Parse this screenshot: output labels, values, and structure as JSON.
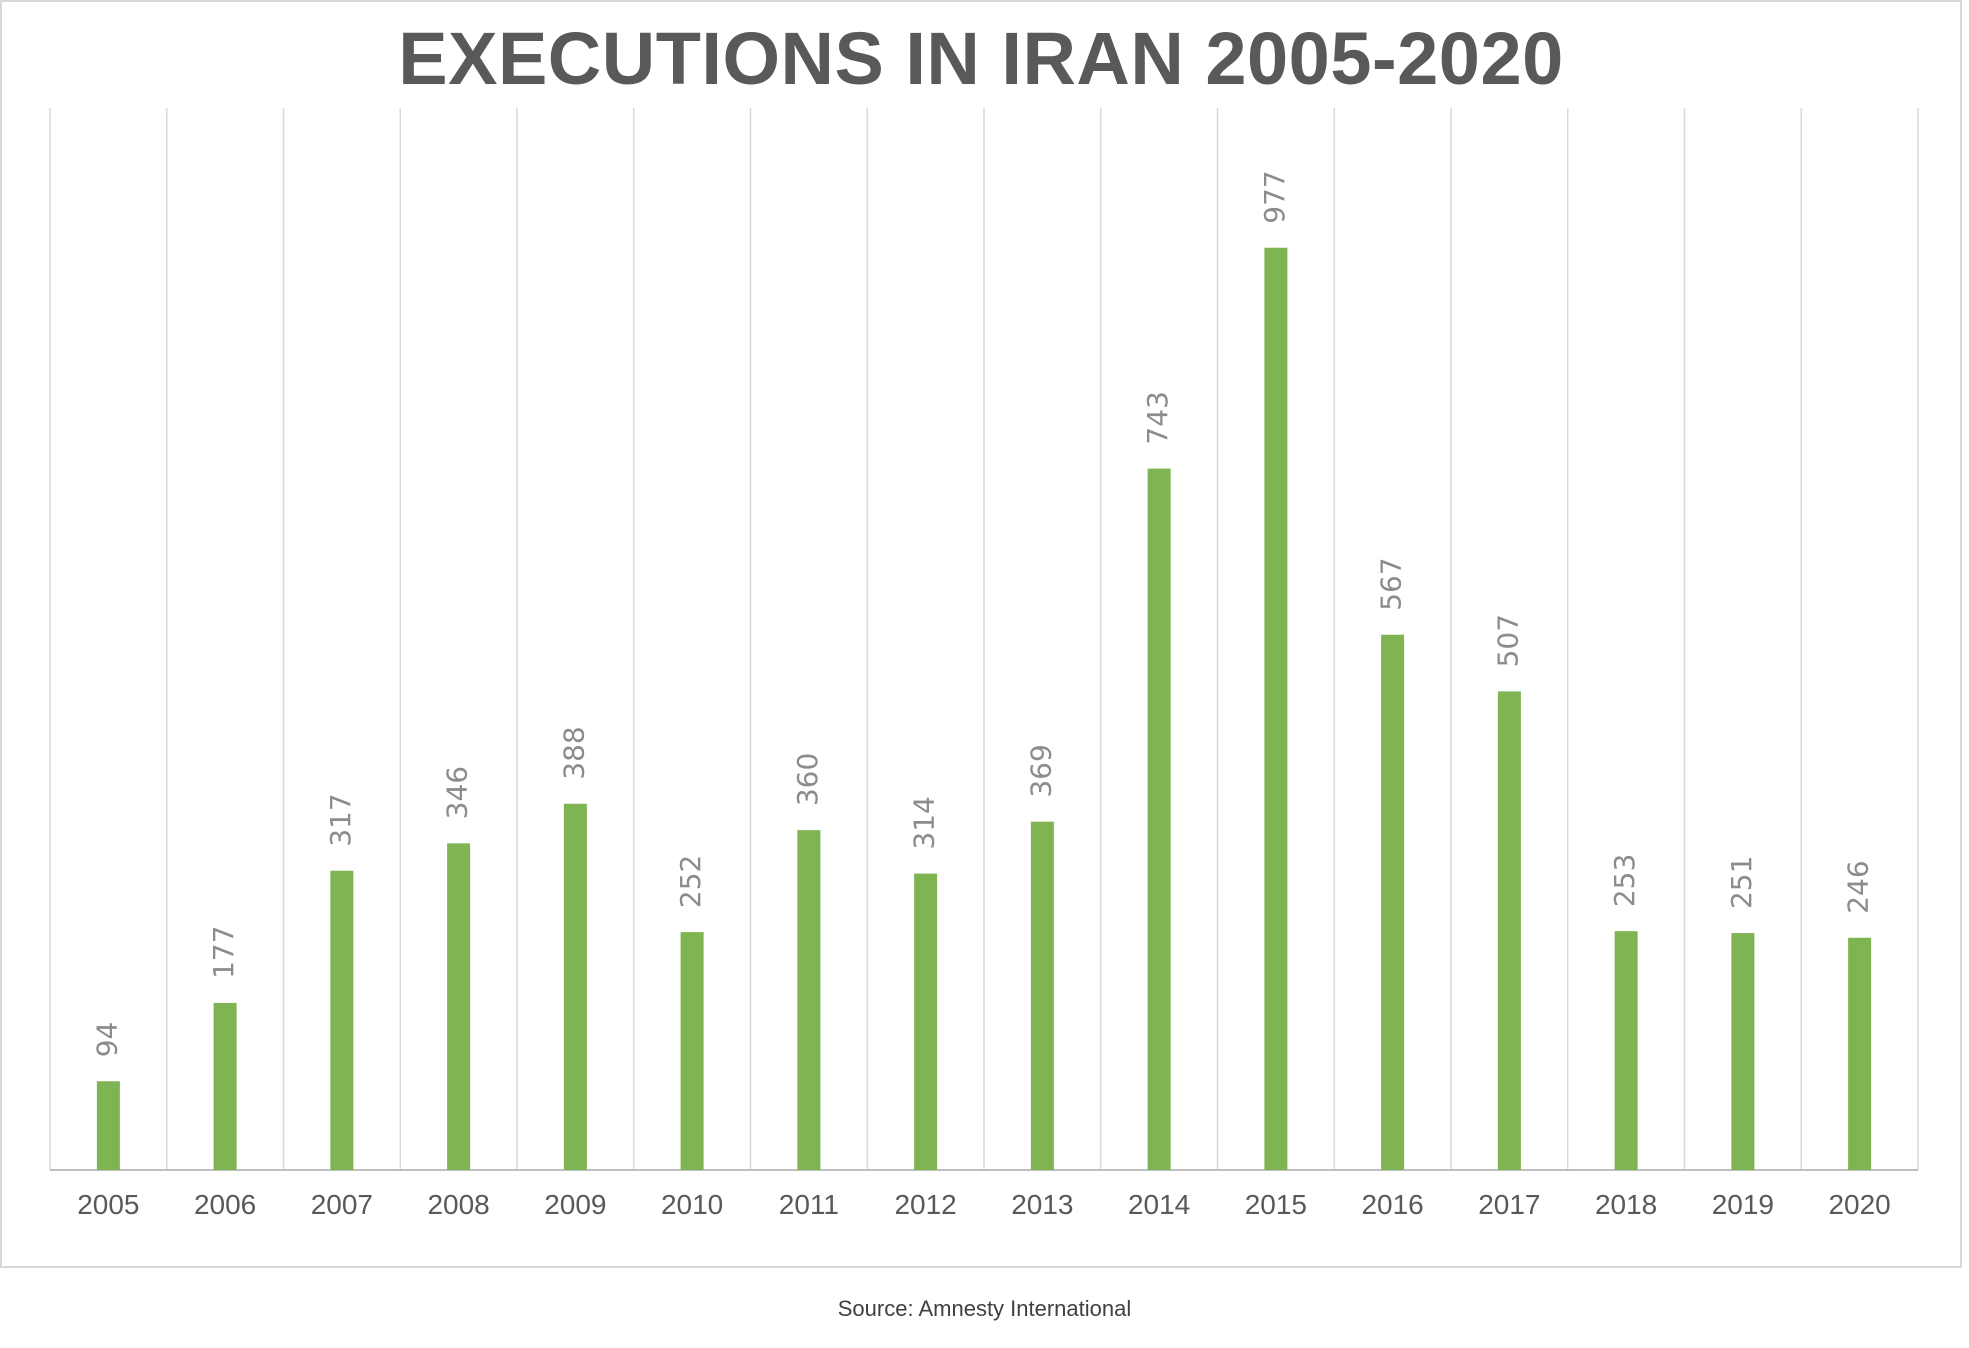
{
  "chart_data": {
    "type": "bar",
    "title": "EXECUTIONS IN IRAN 2005-2020",
    "xlabel": "",
    "ylabel": "",
    "categories": [
      "2005",
      "2006",
      "2007",
      "2008",
      "2009",
      "2010",
      "2011",
      "2012",
      "2013",
      "2014",
      "2015",
      "2016",
      "2017",
      "2018",
      "2019",
      "2020"
    ],
    "values": [
      94,
      177,
      317,
      346,
      388,
      252,
      360,
      314,
      369,
      743,
      977,
      567,
      507,
      253,
      251,
      246
    ],
    "ylim": [
      0,
      1125
    ],
    "grid": "vertical",
    "legend": "none",
    "data_labels": "rotated, above bars",
    "colors": {
      "bar": "#7fb452",
      "label": "#8c8c8c",
      "tick": "#595959",
      "grid": "#d9d9d9",
      "axis": "#bfbfbf"
    }
  },
  "source": "Source: Amnesty International"
}
